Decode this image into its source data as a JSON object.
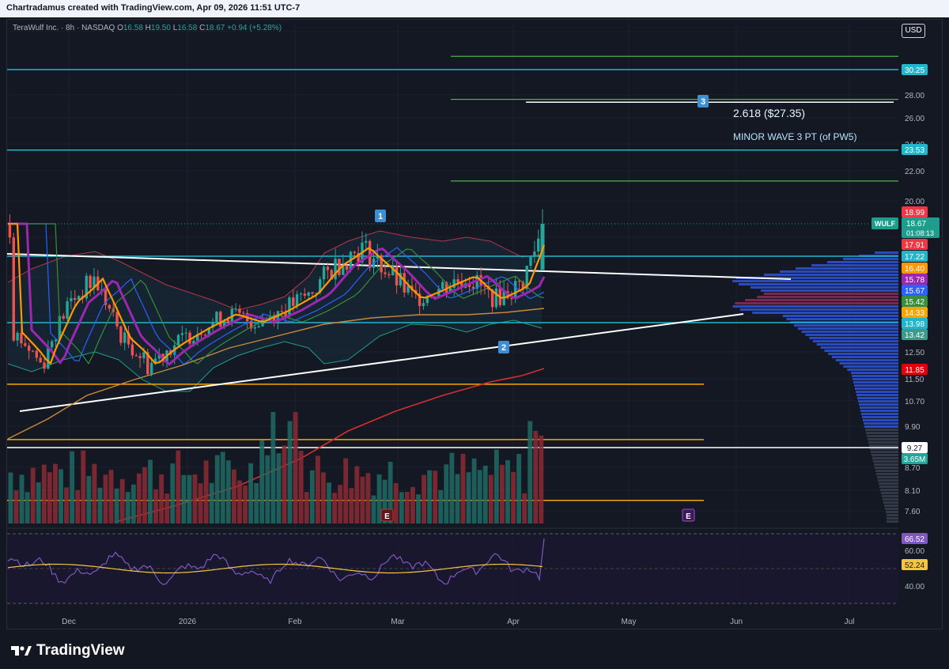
{
  "header": {
    "attribution": "Chartradamus created with TradingView.com, Apr 09, 2026 11:51 UTC-7"
  },
  "legend": {
    "symbol": "TeraWulf Inc. · 8h · NASDAQ",
    "open_label": "O",
    "open": "16.58",
    "high_label": "H",
    "high": "19.50",
    "low_label": "L",
    "low": "16.58",
    "close_label": "C",
    "close": "18.67",
    "change": "+0.94 (+5.28%)"
  },
  "currency": "USD",
  "annotations": {
    "fib_label": "2.618 ($27.35)",
    "wave_label": "MINOR WAVE 3 PT (of PW5)",
    "wave1": "1",
    "wave2": "2",
    "wave3": "3",
    "earnings1": "E",
    "earnings2": "E"
  },
  "brand": "TradingView",
  "chart_data": {
    "type": "candlestick",
    "ticker": "WULF",
    "timeframe": "8h",
    "exchange": "NASDAQ",
    "ohlc_last": {
      "open": 16.58,
      "high": 19.5,
      "low": 16.58,
      "close": 18.67,
      "change": 0.94,
      "change_pct": 5.28
    },
    "x_tick_labels": [
      "Dec",
      "2026",
      "Feb",
      "Mar",
      "Apr",
      "May",
      "Jun",
      "Jul"
    ],
    "y_tick_labels": [
      "28.00",
      "26.00",
      "24.00",
      "22.00",
      "20.00",
      "12.50",
      "11.50",
      "10.70",
      "9.90",
      "8.70",
      "8.10",
      "7.60"
    ],
    "price_tags": [
      {
        "value": "30.25",
        "color": "#22b5cc"
      },
      {
        "value": "23.53",
        "color": "#22b5cc"
      },
      {
        "value": "18.99",
        "color": "#f23645"
      },
      {
        "value": "18.67",
        "color": "#1e9d8c",
        "label": "WULF",
        "sub": "01:08:13"
      },
      {
        "value": "17.91",
        "color": "#f23645"
      },
      {
        "value": "17.22",
        "color": "#22b5cc"
      },
      {
        "value": "16.40",
        "color": "#ff9800"
      },
      {
        "value": "15.78",
        "color": "#9c27b0"
      },
      {
        "value": "15.67",
        "color": "#2962ff"
      },
      {
        "value": "15.42",
        "color": "#388e3c"
      },
      {
        "value": "14.33",
        "color": "#f7a600"
      },
      {
        "value": "13.98",
        "color": "#22b5cc"
      },
      {
        "value": "13.42",
        "color": "#3c9a8a"
      },
      {
        "value": "11.85",
        "color": "#e0000e"
      },
      {
        "value": "9.27",
        "color": "#ffffff"
      },
      {
        "value": "3.65M",
        "color": "#26a69a"
      }
    ],
    "horizontal_levels": [
      {
        "price": 30.25,
        "color": "#22b5cc",
        "name": "cyan resistance"
      },
      {
        "price": 23.53,
        "color": "#22b5cc",
        "name": "cyan resistance"
      },
      {
        "price": 17.22,
        "color": "#22b5cc",
        "name": "cyan level"
      },
      {
        "price": 13.98,
        "color": "#22b5cc",
        "name": "cyan support"
      },
      {
        "price": 11.3,
        "color": "#f7a600",
        "name": "orange support"
      },
      {
        "price": 9.5,
        "color": "#f7a600",
        "name": "orange support"
      },
      {
        "price": 9.27,
        "color": "#ffffff",
        "name": "white level"
      },
      {
        "price": 7.85,
        "color": "#f7a600",
        "name": "orange support"
      }
    ],
    "fib_levels_green": [
      31.5,
      27.6,
      21.3
    ],
    "fib_target": {
      "price": 27.35,
      "ratio": 2.618
    },
    "wave_points": [
      {
        "label": "1",
        "date": "2026-02-24",
        "price": 19.3
      },
      {
        "label": "2",
        "date": "2026-04-01",
        "price": 12.8
      },
      {
        "label": "3",
        "date": "2026-05-31",
        "price": 27.35
      }
    ],
    "candles_close_sample": [
      {
        "date": "2025-11-20",
        "close": 13.6
      },
      {
        "date": "2025-11-28",
        "close": 12.0
      },
      {
        "date": "2025-12-05",
        "close": 15.0
      },
      {
        "date": "2025-12-12",
        "close": 16.2
      },
      {
        "date": "2025-12-19",
        "close": 13.2
      },
      {
        "date": "2025-12-26",
        "close": 12.0
      },
      {
        "date": "2026-01-02",
        "close": 12.9
      },
      {
        "date": "2026-01-09",
        "close": 13.7
      },
      {
        "date": "2026-01-16",
        "close": 14.4
      },
      {
        "date": "2026-01-23",
        "close": 14.0
      },
      {
        "date": "2026-01-30",
        "close": 14.6
      },
      {
        "date": "2026-02-06",
        "close": 15.4
      },
      {
        "date": "2026-02-13",
        "close": 16.8
      },
      {
        "date": "2026-02-20",
        "close": 17.6
      },
      {
        "date": "2026-02-27",
        "close": 16.5
      },
      {
        "date": "2026-03-06",
        "close": 15.2
      },
      {
        "date": "2026-03-13",
        "close": 15.8
      },
      {
        "date": "2026-03-20",
        "close": 16.3
      },
      {
        "date": "2026-03-27",
        "close": 15.2
      },
      {
        "date": "2026-04-03",
        "close": 15.9
      },
      {
        "date": "2026-04-09",
        "close": 18.67
      }
    ],
    "rsi": {
      "value": 66.52,
      "signal": 52.24,
      "y_ticks": [
        "60.00",
        "40.00"
      ]
    },
    "volume_last": "3.65M",
    "volume_profile": true
  }
}
